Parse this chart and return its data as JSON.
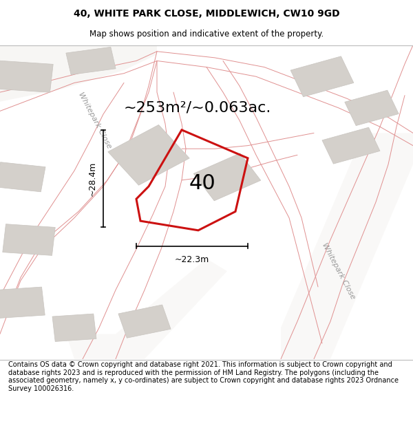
{
  "title": "40, WHITE PARK CLOSE, MIDDLEWICH, CW10 9GD",
  "subtitle": "Map shows position and indicative extent of the property.",
  "footer": "Contains OS data © Crown copyright and database right 2021. This information is subject to Crown copyright and database rights 2023 and is reproduced with the permission of HM Land Registry. The polygons (including the associated geometry, namely x, y co-ordinates) are subject to Crown copyright and database rights 2023 Ordnance Survey 100026316.",
  "area_label": "~253m²/~0.063ac.",
  "number_label": "40",
  "dim_width_label": "~22.3m",
  "dim_height_label": "~28.4m",
  "street_label_diag1": "Whitepark Close",
  "street_label_diag2": "Whitepark Close",
  "map_bg": "#eeece8",
  "building_color": "#d4d0cb",
  "building_edge": "#c8c4bf",
  "road_fill": "#f5f3f0",
  "road_line_color": "#e09090",
  "road_line_color2": "#c8b0b0",
  "property_color": "#cc1111",
  "title_fontsize": 10,
  "subtitle_fontsize": 8.5,
  "footer_fontsize": 7.0,
  "area_fontsize": 16,
  "number_fontsize": 22,
  "dim_fontsize": 9,
  "street_fontsize": 8
}
